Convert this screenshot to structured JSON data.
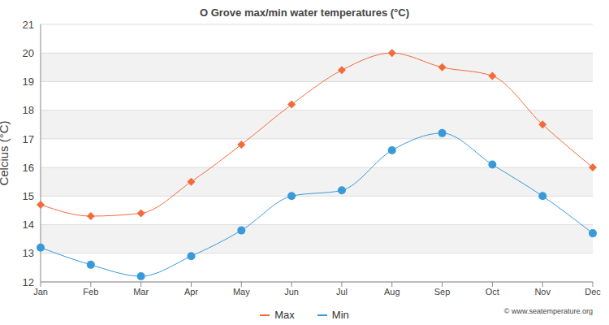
{
  "chart_data": {
    "type": "line",
    "title": "O Grove max/min water temperatures (°C)",
    "ylabel": "Celcius (°C)",
    "source": "© www.seatemperature.org",
    "categories": [
      "Jan",
      "Feb",
      "Mar",
      "Apr",
      "May",
      "Jun",
      "Jul",
      "Aug",
      "Sep",
      "Oct",
      "Nov",
      "Dec"
    ],
    "series": [
      {
        "name": "Max",
        "color": "#f26b3a",
        "marker": "diamond",
        "values": [
          14.7,
          14.3,
          14.4,
          15.5,
          16.8,
          18.2,
          19.4,
          20.0,
          19.5,
          19.2,
          17.5,
          16.0
        ]
      },
      {
        "name": "Min",
        "color": "#3a9ad9",
        "marker": "circle",
        "values": [
          13.2,
          12.6,
          12.2,
          12.9,
          13.8,
          15.0,
          15.2,
          16.6,
          17.2,
          16.1,
          15.0,
          13.7
        ]
      }
    ],
    "ylim": [
      12,
      21
    ],
    "yticks": [
      12,
      13,
      14,
      15,
      16,
      17,
      18,
      19,
      20,
      21
    ],
    "grid": true,
    "legend": "bottom"
  }
}
